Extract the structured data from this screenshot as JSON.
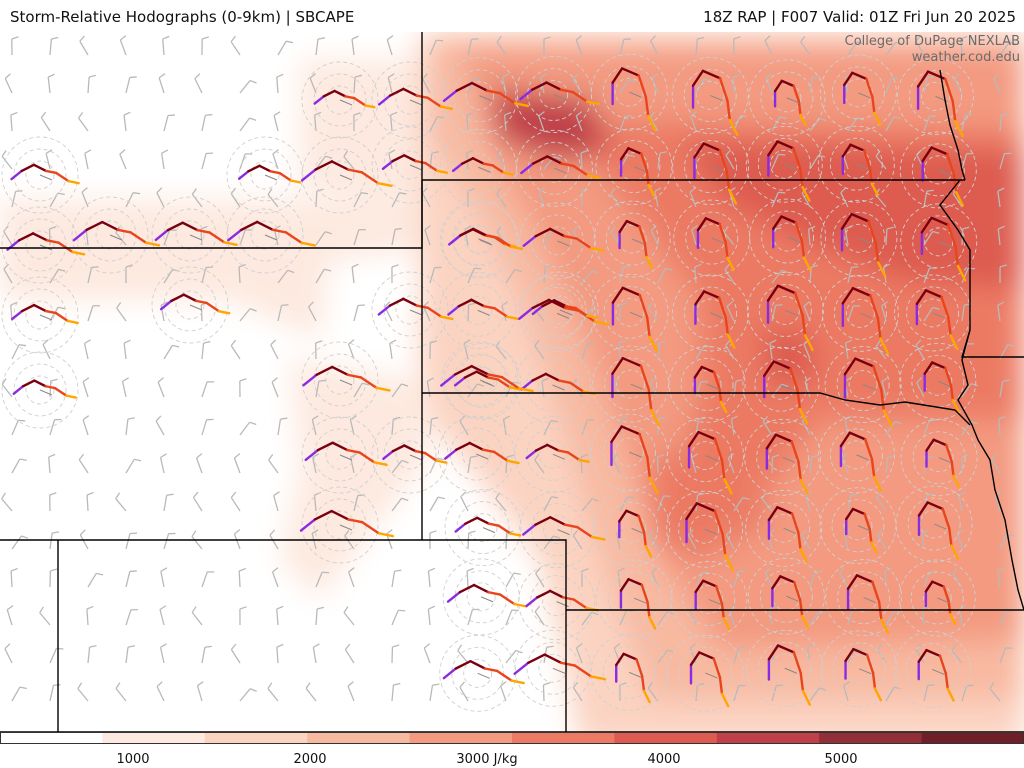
{
  "header": {
    "title_left": "Storm-Relative Hodographs (0-9km) | SBCAPE",
    "title_right": "18Z RAP | F007 Valid: 01Z Fri Jun 20 2025"
  },
  "credit": {
    "line1": "College of DuPage NEXLAB",
    "line2": "weather.cod.edu"
  },
  "colorbar": {
    "unit": "J/kg",
    "range": [
      0,
      6000
    ],
    "ticks": [
      {
        "value": 1000,
        "label": "1000"
      },
      {
        "value": 2000,
        "label": "2000"
      },
      {
        "value": 3000,
        "label": "3000 J/kg"
      },
      {
        "value": 4000,
        "label": "4000"
      },
      {
        "value": 5000,
        "label": "5000"
      }
    ],
    "colors": [
      "#ffffff",
      "#fde9df",
      "#fbd3c1",
      "#f8b9a1",
      "#f39a80",
      "#ec7a64",
      "#dd5b50",
      "#c0404a",
      "#922e38",
      "#6e1f27"
    ]
  },
  "hodograph_colors": {
    "low": "#8a2be2",
    "mid1": "#7a0010",
    "mid2": "#e8451c",
    "high": "#ffa500"
  },
  "legend_note": ""
}
